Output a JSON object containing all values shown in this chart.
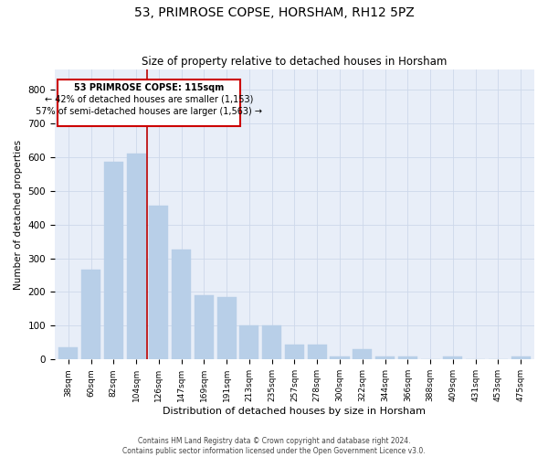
{
  "title": "53, PRIMROSE COPSE, HORSHAM, RH12 5PZ",
  "subtitle": "Size of property relative to detached houses in Horsham",
  "xlabel": "Distribution of detached houses by size in Horsham",
  "ylabel": "Number of detached properties",
  "categories": [
    "38sqm",
    "60sqm",
    "82sqm",
    "104sqm",
    "126sqm",
    "147sqm",
    "169sqm",
    "191sqm",
    "213sqm",
    "235sqm",
    "257sqm",
    "278sqm",
    "300sqm",
    "322sqm",
    "344sqm",
    "366sqm",
    "388sqm",
    "409sqm",
    "431sqm",
    "453sqm",
    "475sqm"
  ],
  "values": [
    35,
    265,
    585,
    610,
    455,
    325,
    190,
    185,
    100,
    100,
    45,
    45,
    10,
    30,
    10,
    10,
    0,
    10,
    0,
    0,
    10
  ],
  "bar_color": "#b8cfe8",
  "bar_edgecolor": "#b8cfe8",
  "bar_width": 0.85,
  "annotation_text_line1": "53 PRIMROSE COPSE: 115sqm",
  "annotation_text_line2": "← 42% of detached houses are smaller (1,153)",
  "annotation_text_line3": "57% of semi-detached houses are larger (1,563) →",
  "annotation_box_color": "#cc0000",
  "ylim_max": 860,
  "yticks": [
    0,
    100,
    200,
    300,
    400,
    500,
    600,
    700,
    800
  ],
  "grid_color": "#cdd8ea",
  "background_color": "#e8eef8",
  "vline_color": "#bb0000",
  "vline_x": 3.5,
  "footer_line1": "Contains HM Land Registry data © Crown copyright and database right 2024.",
  "footer_line2": "Contains public sector information licensed under the Open Government Licence v3.0."
}
